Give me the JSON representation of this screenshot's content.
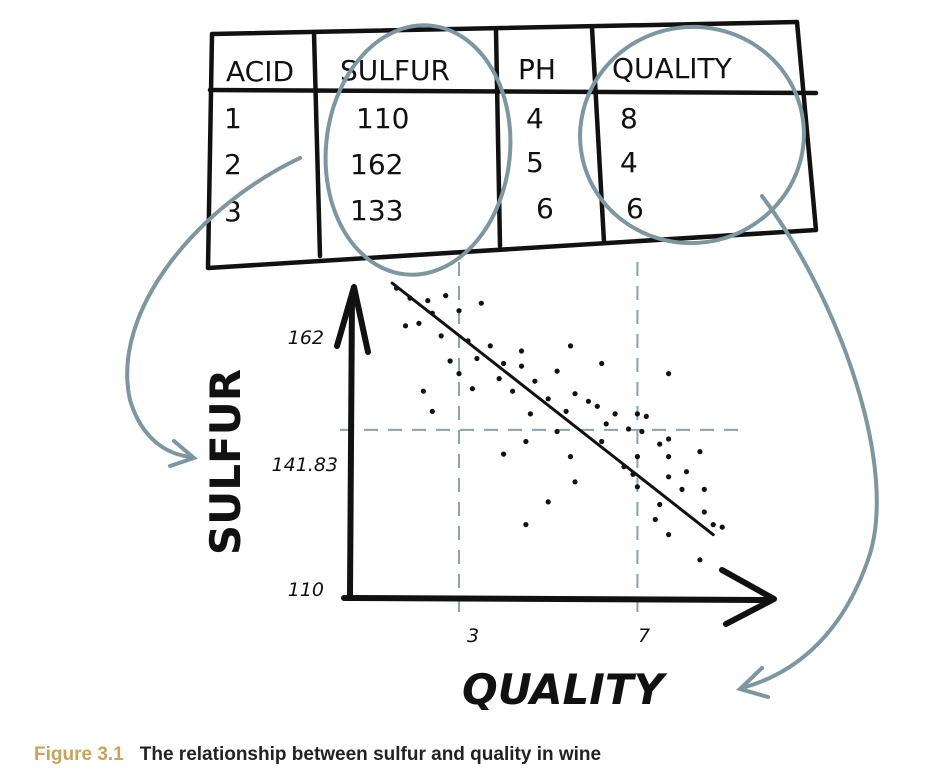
{
  "table": {
    "headers": [
      "ACID",
      "SULFUR",
      "PH",
      "QUALITY"
    ],
    "rows": [
      [
        "1",
        "110",
        "4",
        "8"
      ],
      [
        "2",
        "162",
        "5",
        "4"
      ],
      [
        "3",
        "133",
        "6",
        "6"
      ]
    ]
  },
  "chart_data": {
    "type": "scatter",
    "xlabel": "QUALITY",
    "ylabel": "SULFUR",
    "y_ticks": [
      "110",
      "141.83",
      "162"
    ],
    "x_ticks": [
      "3",
      "7"
    ],
    "reference_lines": {
      "x": [
        3,
        7
      ],
      "y": [
        141.83
      ]
    },
    "xlim": [
      0.6,
      9.3
    ],
    "ylim": [
      110,
      172
    ],
    "trend_line": [
      {
        "x": 1.5,
        "y": 171
      },
      {
        "x": 8.7,
        "y": 121
      }
    ],
    "points": [
      {
        "x": 1.6,
        "y": 170
      },
      {
        "x": 1.9,
        "y": 168
      },
      {
        "x": 2.3,
        "y": 167.5
      },
      {
        "x": 2.7,
        "y": 168.5
      },
      {
        "x": 2.4,
        "y": 165
      },
      {
        "x": 3.0,
        "y": 165.5
      },
      {
        "x": 3.5,
        "y": 167
      },
      {
        "x": 1.8,
        "y": 162.5
      },
      {
        "x": 2.1,
        "y": 163
      },
      {
        "x": 2.6,
        "y": 160.5
      },
      {
        "x": 3.2,
        "y": 159.5
      },
      {
        "x": 3.7,
        "y": 158.5
      },
      {
        "x": 4.4,
        "y": 157.5
      },
      {
        "x": 5.5,
        "y": 158.5
      },
      {
        "x": 2.8,
        "y": 155.5
      },
      {
        "x": 3.4,
        "y": 156
      },
      {
        "x": 4.0,
        "y": 155
      },
      {
        "x": 4.4,
        "y": 154.5
      },
      {
        "x": 3.0,
        "y": 153
      },
      {
        "x": 3.9,
        "y": 152
      },
      {
        "x": 4.7,
        "y": 151.5
      },
      {
        "x": 5.2,
        "y": 153.5
      },
      {
        "x": 6.2,
        "y": 155
      },
      {
        "x": 7.7,
        "y": 153
      },
      {
        "x": 2.2,
        "y": 149.5
      },
      {
        "x": 3.3,
        "y": 150
      },
      {
        "x": 4.2,
        "y": 149.5
      },
      {
        "x": 5.0,
        "y": 148
      },
      {
        "x": 5.6,
        "y": 149
      },
      {
        "x": 5.9,
        "y": 147.5
      },
      {
        "x": 2.4,
        "y": 145.5
      },
      {
        "x": 4.6,
        "y": 145
      },
      {
        "x": 5.4,
        "y": 145.5
      },
      {
        "x": 6.1,
        "y": 146.5
      },
      {
        "x": 6.5,
        "y": 145
      },
      {
        "x": 7.0,
        "y": 145
      },
      {
        "x": 7.2,
        "y": 144.5
      },
      {
        "x": 6.3,
        "y": 143
      },
      {
        "x": 6.8,
        "y": 142
      },
      {
        "x": 7.1,
        "y": 141.5
      },
      {
        "x": 5.2,
        "y": 141.5
      },
      {
        "x": 4.5,
        "y": 139.5
      },
      {
        "x": 6.2,
        "y": 139.5
      },
      {
        "x": 7.5,
        "y": 139
      },
      {
        "x": 7.7,
        "y": 140
      },
      {
        "x": 4.0,
        "y": 137
      },
      {
        "x": 5.5,
        "y": 136.5
      },
      {
        "x": 7.0,
        "y": 136.5
      },
      {
        "x": 7.7,
        "y": 136.5
      },
      {
        "x": 8.4,
        "y": 137.5
      },
      {
        "x": 6.7,
        "y": 134.5
      },
      {
        "x": 6.9,
        "y": 133
      },
      {
        "x": 7.7,
        "y": 132.5
      },
      {
        "x": 8.1,
        "y": 133.5
      },
      {
        "x": 5.6,
        "y": 131.5
      },
      {
        "x": 7.0,
        "y": 130.5
      },
      {
        "x": 8.0,
        "y": 130
      },
      {
        "x": 8.5,
        "y": 130
      },
      {
        "x": 5.0,
        "y": 127.5
      },
      {
        "x": 7.5,
        "y": 127
      },
      {
        "x": 8.5,
        "y": 125.5
      },
      {
        "x": 4.5,
        "y": 123
      },
      {
        "x": 7.4,
        "y": 124
      },
      {
        "x": 8.7,
        "y": 123
      },
      {
        "x": 8.9,
        "y": 122.5
      },
      {
        "x": 7.7,
        "y": 121
      },
      {
        "x": 8.4,
        "y": 116
      }
    ]
  },
  "caption": {
    "number": "Figure 3.1",
    "text": "The relationship between sulfur and quality in wine"
  },
  "colors": {
    "ink": "#111111",
    "annotation": "#7d96a0",
    "caption_number": "#c8a45a"
  }
}
